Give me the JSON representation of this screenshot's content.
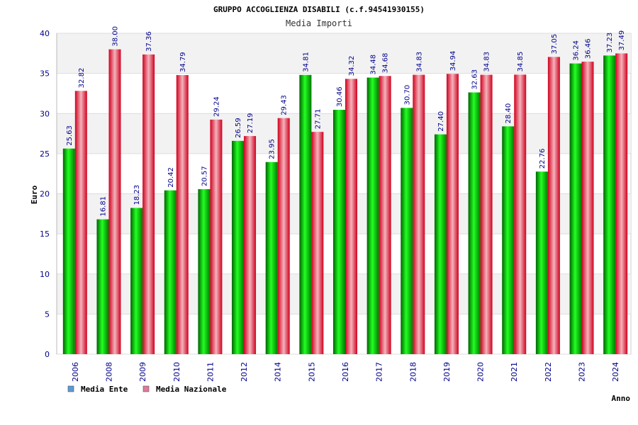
{
  "chart_data": {
    "type": "bar",
    "title": "GRUPPO ACCOGLIENZA DISABILI (c.f.94541930155)",
    "subtitle": "Media Importi",
    "xlabel": "Anno",
    "ylabel": "Euro",
    "ylim": [
      0,
      40
    ],
    "yticks": [
      0,
      5,
      10,
      15,
      20,
      25,
      30,
      35,
      40
    ],
    "grid": true,
    "legend_position": "bottom-left",
    "categories": [
      "2006",
      "2008",
      "2009",
      "2010",
      "2011",
      "2012",
      "2014",
      "2015",
      "2016",
      "2017",
      "2018",
      "2019",
      "2020",
      "2021",
      "2022",
      "2023",
      "2024"
    ],
    "series": [
      {
        "name": "Media Ente",
        "color": "#00a000",
        "legend_color": "#5b9bd5",
        "values": [
          25.63,
          16.81,
          18.23,
          20.42,
          20.57,
          26.59,
          23.95,
          34.81,
          30.46,
          34.48,
          30.7,
          27.4,
          32.63,
          28.4,
          22.76,
          36.24,
          37.23
        ],
        "labels": [
          "25.63",
          "16.81",
          "18.23",
          "20.42",
          "20.57",
          "26.59",
          "23.95",
          "34.81",
          "30.46",
          "34.48",
          "30.70",
          "27.40",
          "32.63",
          "28.40",
          "22.76",
          "36.24",
          "37.23"
        ]
      },
      {
        "name": "Media Nazionale",
        "color": "#e8002a",
        "legend_color": "#e07a9a",
        "values": [
          32.82,
          38.0,
          37.36,
          34.79,
          29.24,
          27.19,
          29.43,
          27.71,
          34.32,
          34.68,
          34.83,
          34.94,
          34.83,
          34.85,
          37.05,
          36.46,
          37.49
        ],
        "labels": [
          "32.82",
          "38.00",
          "37.36",
          "34.79",
          "29.24",
          "27.19",
          "29.43",
          "27.71",
          "34.32",
          "34.68",
          "34.83",
          "34.94",
          "34.83",
          "34.85",
          "37.05",
          "36.46",
          "37.49"
        ]
      }
    ]
  }
}
